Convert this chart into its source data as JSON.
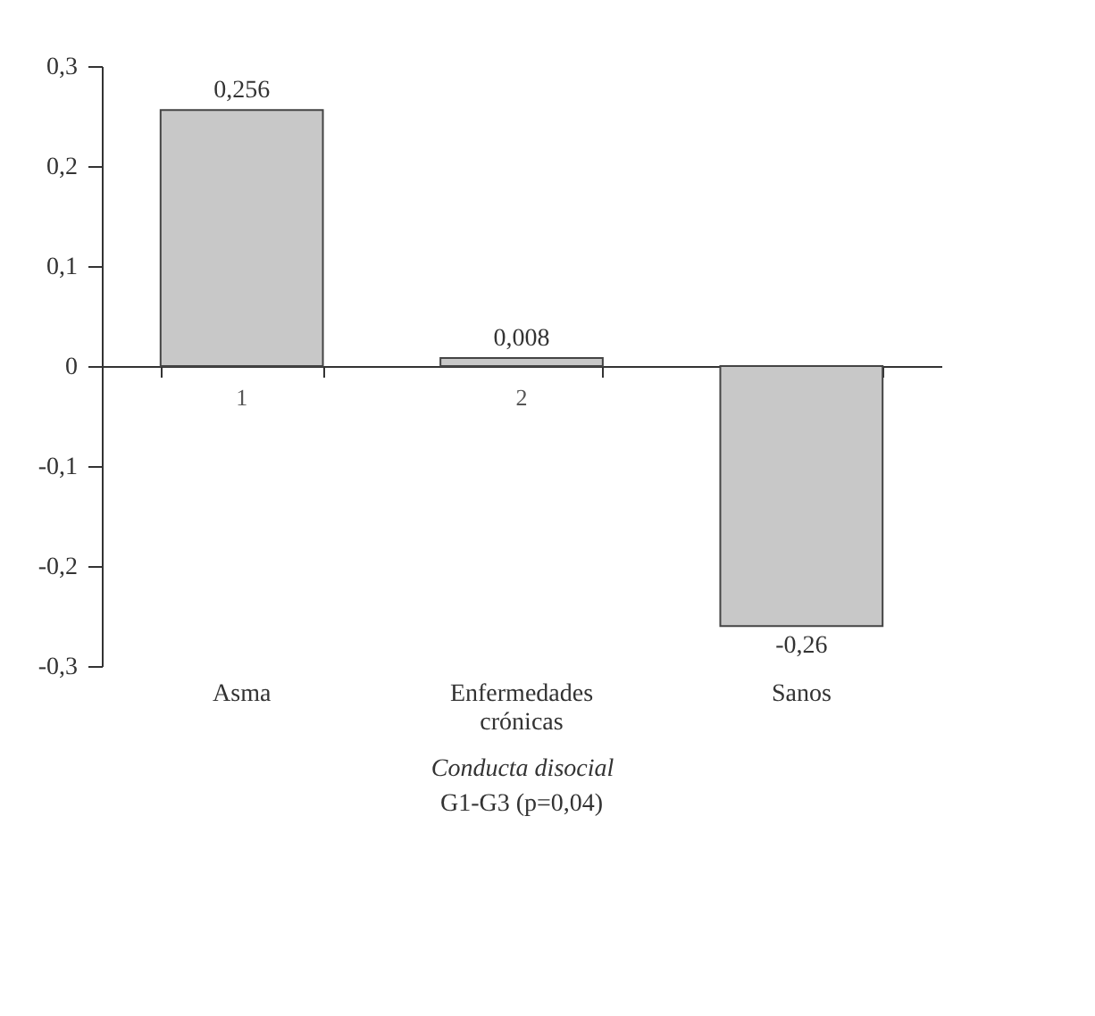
{
  "chart_data": {
    "type": "bar",
    "categories": [
      "Asma",
      "Enfermedades\ncrónicas",
      "Sanos"
    ],
    "values": [
      0.256,
      0.008,
      -0.26
    ],
    "value_labels": [
      "0,256",
      "0,008",
      "-0,26"
    ],
    "color": "#c8c8c8",
    "ylim": [
      -0.3,
      0.3
    ],
    "yticks": [
      {
        "value": -0.3,
        "label": "-0,3"
      },
      {
        "value": -0.2,
        "label": "-0,2"
      },
      {
        "value": -0.1,
        "label": "-0,1"
      },
      0,
      {
        "value": 0.1,
        "label": "0,1"
      },
      {
        "value": 0.2,
        "label": "0,2"
      },
      {
        "value": 0.3,
        "label": "0,3"
      }
    ],
    "xlabel": "Conducta disocial",
    "annotations": [
      {
        "text": "1",
        "x": "Asma",
        "y": 0
      },
      {
        "text": "2",
        "x": "Enfermedades\ncrónicas",
        "y": 0
      },
      "G1-G3 (p=0,04)"
    ]
  }
}
